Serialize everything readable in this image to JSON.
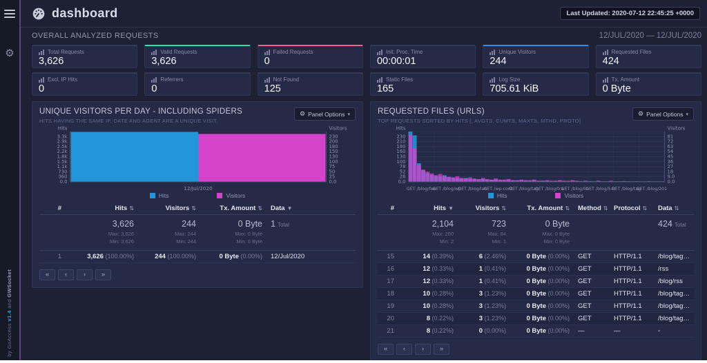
{
  "header": {
    "title": "dashboard",
    "last_updated": "Last Updated: 2020-07-12 22:45:25 +0000"
  },
  "sidebar": {
    "credit": {
      "p1": "by GoAccess ",
      "version": "v1.4",
      "p2": " and ",
      "socket": "GWSocket"
    }
  },
  "icons": {
    "gear": "⚙",
    "caret_down": "▾",
    "sort_both": "⇅",
    "sort_desc": "▼"
  },
  "pager": [
    "«",
    "‹",
    "›",
    "»"
  ],
  "overview": {
    "title": "OVERALL ANALYZED REQUESTS",
    "date_range": "12/JUL/2020 — 12/JUL/2020",
    "cards": [
      {
        "label": "Total Requests",
        "value": "3,626",
        "accent": null
      },
      {
        "label": "Valid Requests",
        "value": "3,626",
        "accent": "#2be3a8"
      },
      {
        "label": "Failed Requests",
        "value": "0",
        "accent": "#f0648f"
      },
      {
        "label": "Init. Proc. Time",
        "value": "00:00:01",
        "accent": null
      },
      {
        "label": "Unique Visitors",
        "value": "244",
        "accent": "#2e8ff2"
      },
      {
        "label": "Requested Files",
        "value": "424",
        "accent": null
      },
      {
        "label": "Excl. IP Hits",
        "value": "0",
        "accent": null
      },
      {
        "label": "Referrers",
        "value": "0",
        "accent": null
      },
      {
        "label": "Not Found",
        "value": "125",
        "accent": null
      },
      {
        "label": "Static Files",
        "value": "165",
        "accent": null
      },
      {
        "label": "Log Size",
        "value": "705.61 KiB",
        "accent": null
      },
      {
        "label": "Tx. Amount",
        "value": "0 Byte",
        "accent": null
      }
    ]
  },
  "panels": {
    "visitors": {
      "title": "UNIQUE VISITORS PER DAY - INCLUDING SPIDERS",
      "subtitle": "HITS HAVING THE SAME IP, DATE AND AGENT ARE A UNIQUE VISIT.",
      "options_label": "Panel Options",
      "table": {
        "headers": [
          {
            "label": "#",
            "sort": null,
            "align": "right"
          },
          {
            "label": "Hits",
            "sort": "both",
            "align": "right"
          },
          {
            "label": "Visitors",
            "sort": "both",
            "align": "right"
          },
          {
            "label": "Tx. Amount",
            "sort": "both",
            "align": "right"
          },
          {
            "label": "Data",
            "sort": "desc",
            "align": "left"
          }
        ],
        "summary": [
          {},
          {
            "big": "3,626",
            "lines": [
              "Max: 3,626",
              "Min: 3,626"
            ]
          },
          {
            "big": "244",
            "lines": [
              "Max: 244",
              "Min: 244"
            ]
          },
          {
            "big": "0 Byte",
            "lines": [
              "Max: 0 Byte",
              "Min: 0 Byte"
            ]
          },
          {
            "big": "1",
            "suffix": "Total"
          }
        ],
        "rows": [
          [
            [
              "1"
            ],
            [
              "3,626",
              "(100.00%)"
            ],
            [
              "244",
              "(100.00%)"
            ],
            [
              "0 Byte",
              "(0.00%)"
            ],
            [
              "12/Jul/2020"
            ]
          ]
        ]
      }
    },
    "requests": {
      "title": "REQUESTED FILES (URLS)",
      "subtitle": "TOP REQUESTS SORTED BY HITS [, AVGTS, CUMTS, MAXTS, MTHD, PROTO]",
      "options_label": "Panel Options",
      "table": {
        "headers": [
          {
            "label": "#",
            "sort": null,
            "align": "right"
          },
          {
            "label": "Hits",
            "sort": "desc",
            "align": "right"
          },
          {
            "label": "Visitors",
            "sort": "both",
            "align": "right"
          },
          {
            "label": "Tx. Amount",
            "sort": "both",
            "align": "right"
          },
          {
            "label": "Method",
            "sort": "both",
            "align": "left"
          },
          {
            "label": "Protocol",
            "sort": "both",
            "align": "left"
          },
          {
            "label": "Data",
            "sort": "both",
            "align": "left"
          }
        ],
        "summary": [
          {},
          {
            "big": "2,104",
            "lines": [
              "Max: 260",
              "Min: 2"
            ]
          },
          {
            "big": "723",
            "lines": [
              "Max: 84",
              "Min: 1"
            ]
          },
          {
            "big": "0 Byte",
            "lines": [
              "Max: 0 Byte",
              "Min: 0 Byte"
            ]
          },
          {},
          {},
          {
            "big": "424",
            "suffix": "Total"
          }
        ],
        "rows": [
          [
            [
              "15"
            ],
            [
              "14",
              "(0.39%)"
            ],
            [
              "6",
              "(2.46%)"
            ],
            [
              "0 Byte",
              "(0.00%)"
            ],
            [
              "GET"
            ],
            [
              "HTTP/1.1"
            ],
            [
              "/blog/tag_military"
            ]
          ],
          [
            [
              "16"
            ],
            [
              "12",
              "(0.33%)"
            ],
            [
              "1",
              "(0.41%)"
            ],
            [
              "0 Byte",
              "(0.00%)"
            ],
            [
              "GET"
            ],
            [
              "HTTP/1.1"
            ],
            [
              "/rss"
            ]
          ],
          [
            [
              "17"
            ],
            [
              "12",
              "(0.33%)"
            ],
            [
              "1",
              "(0.41%)"
            ],
            [
              "0 Byte",
              "(0.00%)"
            ],
            [
              "GET"
            ],
            [
              "HTTP/1.1"
            ],
            [
              "/blog/rss"
            ]
          ],
          [
            [
              "18"
            ],
            [
              "10",
              "(0.28%)"
            ],
            [
              "3",
              "(1.23%)"
            ],
            [
              "0 Byte",
              "(0.00%)"
            ],
            [
              "GET"
            ],
            [
              "HTTP/1.1"
            ],
            [
              "/blog/tag_music.html"
            ]
          ],
          [
            [
              "19"
            ],
            [
              "10",
              "(0.28%)"
            ],
            [
              "3",
              "(1.23%)"
            ],
            [
              "0 Byte",
              "(0.00%)"
            ],
            [
              "GET"
            ],
            [
              "HTTP/1.1"
            ],
            [
              "/blog/tag_IT.html"
            ]
          ],
          [
            [
              "20"
            ],
            [
              "8",
              "(0.22%)"
            ],
            [
              "3",
              "(1.23%)"
            ],
            [
              "0 Byte",
              "(0.00%)"
            ],
            [
              "GET"
            ],
            [
              "HTTP/1.1"
            ],
            [
              "/blog/tag_music"
            ]
          ],
          [
            [
              "21"
            ],
            [
              "8",
              "(0.22%)"
            ],
            [
              "0",
              "(0.00%)"
            ],
            [
              "0 Byte",
              "(0.00%)"
            ],
            [
              "—"
            ],
            [
              "—"
            ],
            [
              "-"
            ]
          ]
        ]
      }
    }
  },
  "chart_data": [
    {
      "type": "bar",
      "title": "Unique Visitors per Day - Including Spiders",
      "categories": [
        "12/Jul/2020"
      ],
      "series": [
        {
          "name": "Hits",
          "color": "#2196d8",
          "values": [
            3626
          ]
        },
        {
          "name": "Visitors",
          "color": "#d543cb",
          "values": [
            244
          ]
        }
      ],
      "y_left": {
        "label": "Hits",
        "axis_max": 3651,
        "ticks_top_down": [
          "3.3k",
          "2.9k",
          "2.5k",
          "2.2k",
          "1.8k",
          "1.5k",
          "1.1k",
          "730",
          "360",
          "0.0"
        ]
      },
      "y_right": {
        "label": "Visitors",
        "axis_max": 256,
        "ticks_top_down": [
          "230",
          "200",
          "180",
          "150",
          "130",
          "100",
          "75",
          "50",
          "25",
          "0.0"
        ]
      },
      "grid": true,
      "legend_position": "bottom"
    },
    {
      "type": "area",
      "title": "Requested Files (URLs)",
      "x_tick_labels": [
        "GET /blog/fee",
        "GET /blog/wp",
        "GET /blog/lan",
        "GET /wp-cont",
        "GET /blog/tag",
        "GET /blog/tra",
        "GET /blog/lin",
        "GET /blog/5-ir",
        "GET /blog/tag",
        "GET /blog/201"
      ],
      "series": [
        {
          "name": "Hits",
          "color": "#2196d8",
          "axis": "left",
          "values": [
            260,
            240,
            96,
            60,
            44,
            36,
            30,
            28,
            34,
            26,
            22,
            18,
            16,
            20,
            14,
            13,
            12,
            14,
            11,
            10,
            12,
            9,
            8,
            10,
            8,
            7,
            9,
            7,
            6,
            8,
            6,
            6,
            7,
            5,
            5,
            6,
            5,
            4,
            6,
            4,
            4,
            5,
            4,
            3,
            5,
            3,
            3,
            4,
            3,
            3,
            4,
            3,
            2,
            3,
            2,
            2,
            3,
            2,
            2,
            2
          ]
        },
        {
          "name": "Visitors",
          "color": "#d543cb",
          "axis": "right",
          "values": [
            84,
            60,
            30,
            22,
            18,
            15,
            12,
            14,
            10,
            9,
            8,
            10,
            7,
            6,
            8,
            6,
            5,
            7,
            5,
            4,
            6,
            4,
            4,
            5,
            3,
            3,
            4,
            3,
            3,
            4,
            2,
            2,
            3,
            2,
            2,
            3,
            2,
            2,
            3,
            2,
            1,
            2,
            1,
            1,
            2,
            1,
            1,
            2,
            1,
            1,
            1,
            1,
            1,
            1,
            1,
            1,
            1,
            1,
            1,
            1
          ]
        }
      ],
      "y_left": {
        "label": "Hits",
        "axis_max": 260,
        "ticks_top_down": [
          "230",
          "210",
          "180",
          "160",
          "130",
          "100",
          "78",
          "52",
          "26",
          "0.0"
        ]
      },
      "y_right": {
        "label": "Visitors",
        "axis_max": 90,
        "ticks_top_down": [
          "81",
          "72",
          "63",
          "54",
          "45",
          "36",
          "27",
          "18",
          "9.0",
          "0.0"
        ]
      },
      "grid": true,
      "legend_position": "bottom"
    }
  ]
}
